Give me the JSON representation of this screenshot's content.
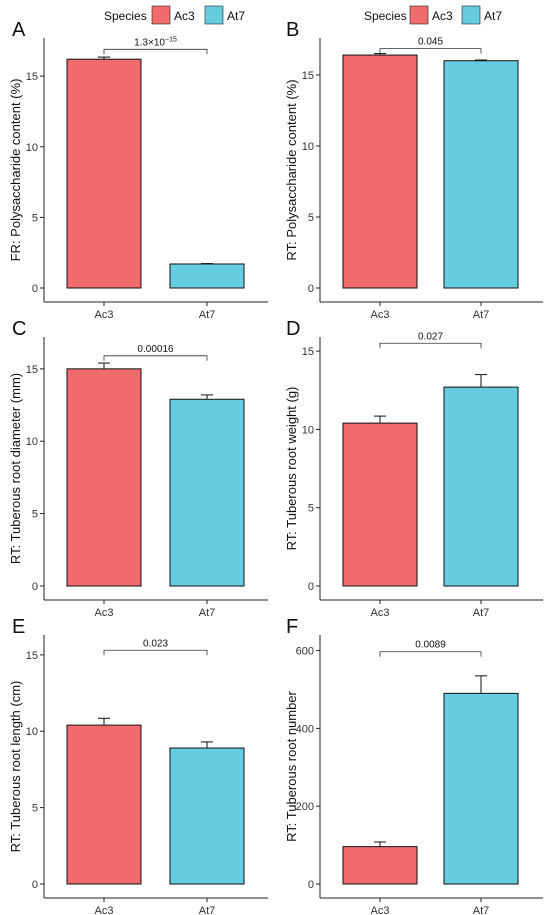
{
  "legend": {
    "title": "Species",
    "items": [
      {
        "label": "Ac3",
        "color": "#F06B6B"
      },
      {
        "label": "At7",
        "color": "#66CCE0"
      }
    ]
  },
  "chart_data": [
    {
      "panel": "A",
      "type": "bar",
      "ylabel": "FR: Polysaccharide content (%)",
      "categories": [
        "Ac3",
        "At7"
      ],
      "values": [
        16.2,
        1.7
      ],
      "errors": [
        0.15,
        0.03
      ],
      "yticks": [
        0,
        5,
        10,
        15
      ],
      "ylim": [
        0,
        17.7
      ],
      "pvalue": {
        "base": "1.3",
        "times": "×",
        "tenexp": "10",
        "exp": "−15"
      },
      "bracket_y": 16.9
    },
    {
      "panel": "B",
      "type": "bar",
      "ylabel": "RT: Polysaccharide content (%)",
      "categories": [
        "Ac3",
        "At7"
      ],
      "values": [
        16.4,
        16.0
      ],
      "errors": [
        0.1,
        0.05
      ],
      "yticks": [
        0,
        5,
        10,
        15
      ],
      "ylim": [
        0,
        17.6
      ],
      "pvalue": "0.045",
      "bracket_y": 16.85
    },
    {
      "panel": "C",
      "type": "bar",
      "ylabel": "RT: Tuberous root diameter (mm)",
      "categories": [
        "Ac3",
        "At7"
      ],
      "values": [
        15.0,
        12.9
      ],
      "errors": [
        0.4,
        0.3
      ],
      "yticks": [
        0,
        5,
        10,
        15
      ],
      "ylim": [
        0,
        17.2
      ],
      "pvalue": "0.00016",
      "bracket_y": 15.9
    },
    {
      "panel": "D",
      "type": "bar",
      "ylabel": "RT: Tuberous root weight (g)",
      "categories": [
        "Ac3",
        "At7"
      ],
      "values": [
        10.4,
        12.7
      ],
      "errors": [
        0.45,
        0.8
      ],
      "yticks": [
        0,
        5,
        10,
        15
      ],
      "ylim": [
        0,
        15.9
      ],
      "pvalue": "0.027",
      "bracket_y": 15.5
    },
    {
      "panel": "E",
      "type": "bar",
      "ylabel": "RT: Tuberous root length (cm)",
      "categories": [
        "Ac3",
        "At7"
      ],
      "values": [
        10.4,
        8.9
      ],
      "errors": [
        0.45,
        0.4
      ],
      "yticks": [
        0,
        5,
        10,
        15
      ],
      "ylim": [
        0,
        16.3
      ],
      "pvalue": "0.023",
      "bracket_y": 15.3
    },
    {
      "panel": "F",
      "type": "bar",
      "ylabel": "RT: Tuberous root number",
      "categories": [
        "Ac3",
        "At7"
      ],
      "values": [
        96,
        490
      ],
      "errors": [
        12,
        45
      ],
      "yticks": [
        0,
        200,
        400,
        600
      ],
      "ylim": [
        0,
        640
      ],
      "pvalue": "0.0089",
      "bracket_y": 597
    }
  ]
}
